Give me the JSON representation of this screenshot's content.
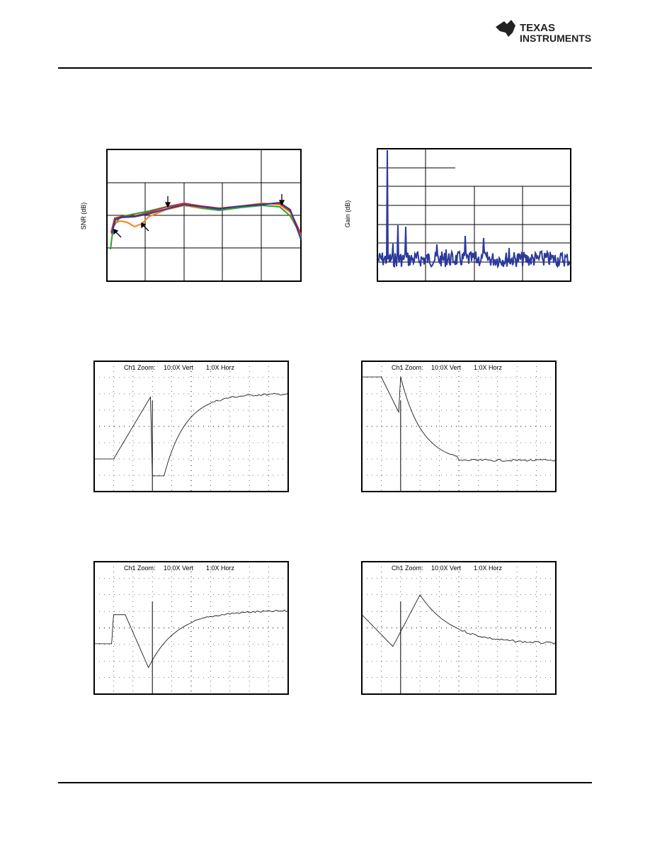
{
  "header": {
    "logo": [
      "TEXAS",
      "INSTRUMENTS"
    ]
  },
  "figures": [
    {
      "y_label": "SNR (dB)"
    },
    {
      "y_label": "Gain (dB)"
    }
  ],
  "scopes": [
    {
      "label": [
        "Ch1 Zoom:",
        "10.0X Vert",
        "1.0X Horz"
      ]
    },
    {
      "label": [
        "Ch1 Zoom:",
        "10.0X Vert",
        "1.0X Horz"
      ]
    },
    {
      "label": [
        "Ch1 Zoom:",
        "10.0X Vert",
        "1.0X Horz"
      ]
    },
    {
      "label": [
        "Ch1 Zoom:",
        "10.0X Vert",
        "1.0X Horz"
      ]
    }
  ]
}
